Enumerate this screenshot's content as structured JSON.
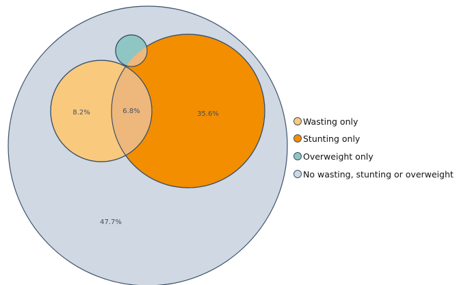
{
  "chart_data": {
    "type": "venn",
    "sets": [
      {
        "name": "No wasting, stunting or overweight",
        "color": "#cfd8e3"
      },
      {
        "name": "Wasting only",
        "color": "#f9c97e"
      },
      {
        "name": "Stunting only",
        "color": "#f28e00"
      },
      {
        "name": "Overweight only",
        "color": "#8fc6c4"
      }
    ],
    "region_labels": [
      {
        "region": "wasting-only",
        "text": "8.2%",
        "value": 8.2
      },
      {
        "region": "wasting-and-stunting",
        "text": "6.8%",
        "value": 6.8
      },
      {
        "region": "stunting-only",
        "text": "35.6%",
        "value": 35.6
      },
      {
        "region": "none",
        "text": "47.7%",
        "value": 47.7
      }
    ],
    "legend_position": "right",
    "legend": [
      {
        "label": "Wasting only",
        "color": "#f9c97e"
      },
      {
        "label": "Stunting only",
        "color": "#f28e00"
      },
      {
        "label": "Overweight only",
        "color": "#8fc6c4"
      },
      {
        "label": "No wasting, stunting or overweight",
        "color": "#cfd8e3"
      }
    ],
    "overlap_color": "#eeb77b",
    "stroke_color": "#3b5068"
  }
}
